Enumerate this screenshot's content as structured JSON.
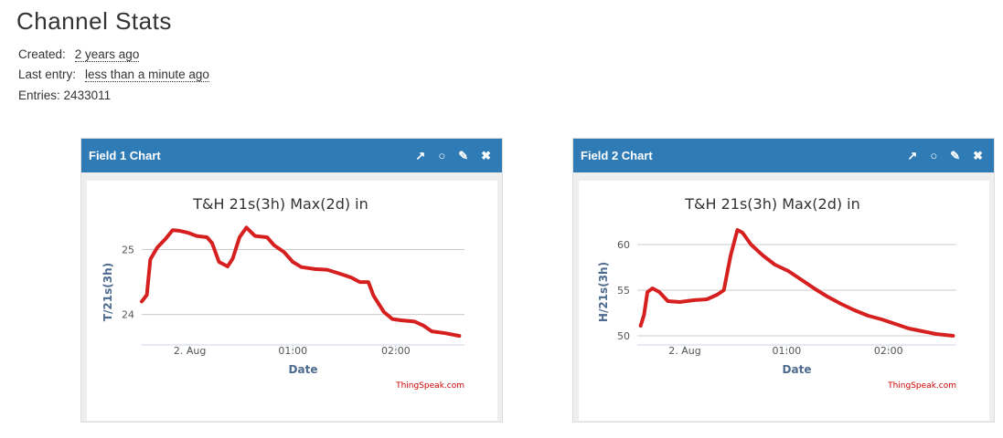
{
  "header": {
    "title": "Channel Stats",
    "created_label": "Created:",
    "created_value": "2 years ago",
    "last_entry_label": "Last entry:",
    "last_entry_value": "less than a minute ago",
    "entries_label": "Entries:",
    "entries_value": 2433011
  },
  "panels": [
    {
      "title": "Field 1 Chart"
    },
    {
      "title": "Field 2 Chart"
    }
  ],
  "chart_data": [
    {
      "type": "line",
      "title": "T&H 21s(3h) Max(2d) in",
      "x_label": "Date",
      "y_label": "T/21s(3h)",
      "credits": "ThingSpeak.com",
      "x": [
        "23:32",
        "23:35",
        "23:37",
        "23:41",
        "23:46",
        "23:50",
        "23:54",
        "23:59",
        "00:04",
        "00:10",
        "00:13",
        "00:17",
        "00:22",
        "00:25",
        "00:29",
        "00:33",
        "00:38",
        "00:45",
        "00:49",
        "00:55",
        "01:00",
        "01:05",
        "01:13",
        "01:20",
        "01:26",
        "01:34",
        "01:39",
        "01:44",
        "01:47",
        "01:53",
        "01:58",
        "02:03",
        "02:11",
        "02:16",
        "02:21",
        "02:29",
        "02:37"
      ],
      "series": [
        {
          "name": "T",
          "color": "#d62020",
          "values": [
            24.2,
            24.3,
            24.85,
            25.03,
            25.17,
            25.3,
            25.29,
            25.26,
            25.21,
            25.19,
            25.1,
            24.81,
            24.74,
            24.86,
            25.19,
            25.34,
            25.21,
            25.19,
            25.07,
            24.96,
            24.81,
            24.73,
            24.7,
            24.69,
            24.64,
            24.57,
            24.5,
            24.5,
            24.29,
            24.04,
            23.93,
            23.91,
            23.89,
            23.83,
            23.74,
            23.71,
            23.67
          ]
        }
      ],
      "xlim": [
        "23:32",
        "02:40"
      ],
      "xticks": [
        {
          "value": "00:00",
          "label": "2. Aug"
        },
        "01:00",
        "02:00"
      ],
      "ylim": [
        23.53,
        25.5
      ],
      "yticks": [
        24,
        25
      ],
      "grid": true
    },
    {
      "type": "line",
      "title": "T&H 21s(3h) Max(2d) in",
      "x_label": "Date",
      "y_label": "H/21s(3h)",
      "credits": "ThingSpeak.com",
      "x": [
        "23:34",
        "23:36",
        "23:38",
        "23:41",
        "23:45",
        "23:50",
        "23:57",
        "00:05",
        "00:13",
        "00:19",
        "00:23",
        "00:27",
        "00:31",
        "00:34",
        "00:39",
        "00:46",
        "00:53",
        "01:01",
        "01:09",
        "01:17",
        "01:24",
        "01:32",
        "01:40",
        "01:48",
        "01:56",
        "02:04",
        "02:12",
        "02:20",
        "02:28",
        "02:38"
      ],
      "series": [
        {
          "name": "H",
          "color": "#d62020",
          "values": [
            51.1,
            52.3,
            54.8,
            55.2,
            54.8,
            53.8,
            53.7,
            53.9,
            54.0,
            54.5,
            55.0,
            58.8,
            61.6,
            61.3,
            60,
            58.8,
            57.8,
            57.1,
            56.1,
            55.1,
            54.3,
            53.5,
            52.8,
            52.2,
            51.8,
            51.3,
            50.8,
            50.5,
            50.2,
            50.0
          ]
        }
      ],
      "xlim": [
        "23:32",
        "02:40"
      ],
      "xticks": [
        {
          "value": "00:00",
          "label": "2. Aug"
        },
        "01:00",
        "02:00"
      ],
      "ylim": [
        49,
        63
      ],
      "yticks": [
        50,
        55,
        60
      ],
      "grid": true
    }
  ]
}
